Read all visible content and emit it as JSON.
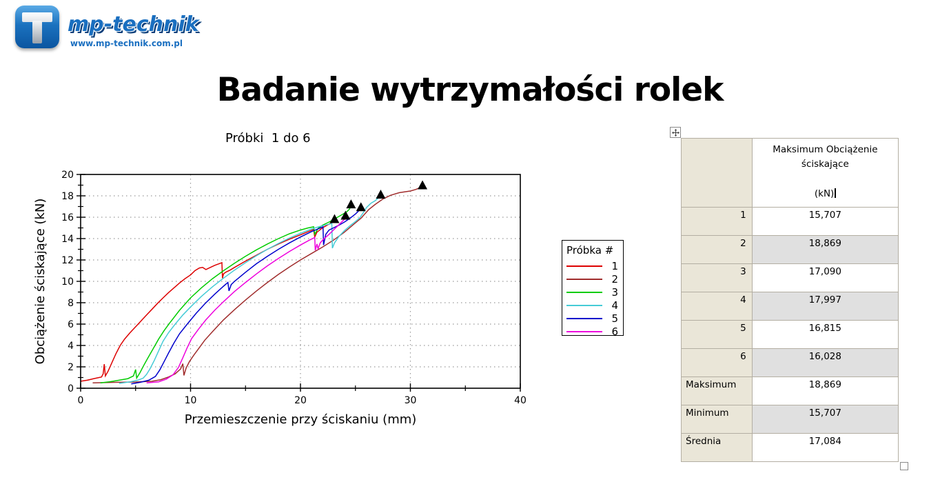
{
  "brand": {
    "logo_letter": "T",
    "name": "mp-technik",
    "website": "www.mp-technik.com.pl",
    "color": "#1a6fc0"
  },
  "page_title": "Badanie wytrzymałości rolek",
  "chart_data": {
    "type": "line",
    "title": "Próbki  1 do 6",
    "xlabel": "Przemieszczenie przy ściskaniu (mm)",
    "ylabel": "Obciążenie ściskające (kN)",
    "xlim": [
      0,
      40
    ],
    "ylim": [
      0,
      20
    ],
    "x_ticks": [
      0,
      10,
      20,
      30,
      40
    ],
    "x_minor_ticks": [
      5,
      15,
      25,
      35
    ],
    "y_ticks": [
      0,
      2,
      4,
      6,
      8,
      10,
      12,
      14,
      16,
      18,
      20
    ],
    "y_minor_ticks": [
      1,
      3,
      5,
      7,
      9,
      11,
      13,
      15,
      17,
      19
    ],
    "grid": true,
    "grid_color": "#999999",
    "legend_title": "Próbka #",
    "legend_position": "right",
    "marker_note": "black triangle marks maximum load of each sample",
    "series": [
      {
        "name": "1",
        "color": "#dd0000",
        "max_point": [
          23.1,
          15.71
        ],
        "points": [
          [
            0,
            0.65
          ],
          [
            0.6,
            0.75
          ],
          [
            1.2,
            0.9
          ],
          [
            1.9,
            1.05
          ],
          [
            2.05,
            1.35
          ],
          [
            2.15,
            2.25
          ],
          [
            2.25,
            1.15
          ],
          [
            2.5,
            1.6
          ],
          [
            2.8,
            2.3
          ],
          [
            3.2,
            3.2
          ],
          [
            3.6,
            4.0
          ],
          [
            4,
            4.6
          ],
          [
            4.5,
            5.2
          ],
          [
            5,
            5.75
          ],
          [
            5.5,
            6.3
          ],
          [
            6,
            6.85
          ],
          [
            6.5,
            7.4
          ],
          [
            7,
            7.95
          ],
          [
            7.5,
            8.45
          ],
          [
            8,
            8.95
          ],
          [
            8.5,
            9.4
          ],
          [
            9,
            9.85
          ],
          [
            9.5,
            10.25
          ],
          [
            10,
            10.6
          ],
          [
            10.4,
            11.0
          ],
          [
            10.8,
            11.25
          ],
          [
            11.1,
            11.3
          ],
          [
            11.4,
            11.1
          ],
          [
            11.7,
            11.25
          ],
          [
            12.2,
            11.5
          ],
          [
            12.6,
            11.65
          ],
          [
            12.85,
            11.75
          ],
          [
            12.9,
            10.3
          ],
          [
            13,
            10.7
          ],
          [
            13.2,
            10.85
          ],
          [
            13.6,
            11.05
          ],
          [
            14,
            11.3
          ],
          [
            15,
            11.9
          ],
          [
            16,
            12.45
          ],
          [
            17,
            13.0
          ],
          [
            18,
            13.5
          ],
          [
            19,
            13.95
          ],
          [
            20,
            14.35
          ],
          [
            20.7,
            14.65
          ],
          [
            21.2,
            14.85
          ],
          [
            21.3,
            14.15
          ],
          [
            21.5,
            14.6
          ],
          [
            22,
            15.0
          ],
          [
            22.5,
            15.3
          ],
          [
            22.8,
            15.45
          ],
          [
            23.1,
            15.71
          ]
        ]
      },
      {
        "name": "2",
        "color": "#a02c2c",
        "max_point": [
          31.1,
          18.87
        ],
        "points": [
          [
            1.1,
            0.5
          ],
          [
            3,
            0.55
          ],
          [
            5,
            0.58
          ],
          [
            6.5,
            0.65
          ],
          [
            7.3,
            0.8
          ],
          [
            8,
            1.05
          ],
          [
            8.6,
            1.35
          ],
          [
            9.1,
            1.8
          ],
          [
            9.3,
            2.3
          ],
          [
            9.4,
            1.2
          ],
          [
            9.6,
            1.9
          ],
          [
            9.9,
            2.5
          ],
          [
            10.3,
            3.1
          ],
          [
            10.8,
            3.8
          ],
          [
            11.3,
            4.5
          ],
          [
            12,
            5.3
          ],
          [
            13,
            6.4
          ],
          [
            14,
            7.35
          ],
          [
            15,
            8.25
          ],
          [
            16,
            9.1
          ],
          [
            17,
            9.9
          ],
          [
            18,
            10.65
          ],
          [
            19,
            11.35
          ],
          [
            20,
            12.0
          ],
          [
            21,
            12.6
          ],
          [
            22,
            13.2
          ],
          [
            23,
            13.85
          ],
          [
            24,
            14.6
          ],
          [
            24.8,
            15.3
          ],
          [
            25.5,
            15.9
          ],
          [
            26.2,
            16.7
          ],
          [
            26.8,
            17.2
          ],
          [
            27.5,
            17.7
          ],
          [
            28.2,
            18.05
          ],
          [
            29,
            18.3
          ],
          [
            30,
            18.45
          ],
          [
            30.5,
            18.6
          ],
          [
            31.1,
            18.87
          ]
        ]
      },
      {
        "name": "3",
        "color": "#00cc00",
        "max_point": [
          24.6,
          17.09
        ],
        "points": [
          [
            1.8,
            0.5
          ],
          [
            2.6,
            0.6
          ],
          [
            3.5,
            0.75
          ],
          [
            4.3,
            0.9
          ],
          [
            4.8,
            1.15
          ],
          [
            5,
            1.75
          ],
          [
            5.1,
            0.95
          ],
          [
            5.4,
            1.45
          ],
          [
            5.7,
            2.05
          ],
          [
            6.1,
            2.8
          ],
          [
            6.6,
            3.7
          ],
          [
            7.1,
            4.6
          ],
          [
            7.6,
            5.4
          ],
          [
            8.1,
            6.1
          ],
          [
            9,
            7.3
          ],
          [
            10,
            8.45
          ],
          [
            11,
            9.4
          ],
          [
            12,
            10.25
          ],
          [
            13,
            11.0
          ],
          [
            14,
            11.7
          ],
          [
            15,
            12.35
          ],
          [
            16,
            12.95
          ],
          [
            17,
            13.5
          ],
          [
            18,
            14.0
          ],
          [
            19,
            14.45
          ],
          [
            20,
            14.8
          ],
          [
            20.7,
            15.0
          ],
          [
            21.2,
            15.1
          ],
          [
            21.3,
            14.4
          ],
          [
            21.6,
            14.95
          ],
          [
            22,
            15.25
          ],
          [
            22.6,
            15.55
          ],
          [
            23.2,
            15.9
          ],
          [
            23.8,
            16.25
          ],
          [
            24.2,
            16.5
          ],
          [
            24.45,
            16.75
          ],
          [
            24.6,
            17.09
          ]
        ]
      },
      {
        "name": "4",
        "color": "#45cbd6",
        "max_point": [
          27.3,
          18.0
        ],
        "points": [
          [
            3.5,
            0.45
          ],
          [
            4.5,
            0.6
          ],
          [
            5.2,
            0.75
          ],
          [
            5.7,
            0.95
          ],
          [
            6,
            1.3
          ],
          [
            6.3,
            1.8
          ],
          [
            6.7,
            2.6
          ],
          [
            7.1,
            3.5
          ],
          [
            7.5,
            4.4
          ],
          [
            8,
            5.2
          ],
          [
            8.6,
            6.0
          ],
          [
            9.3,
            6.85
          ],
          [
            10,
            7.6
          ],
          [
            11,
            8.6
          ],
          [
            12,
            9.5
          ],
          [
            13,
            10.3
          ],
          [
            14,
            11.05
          ],
          [
            15,
            11.75
          ],
          [
            16,
            12.4
          ],
          [
            17,
            13.0
          ],
          [
            18,
            13.55
          ],
          [
            19,
            14.05
          ],
          [
            20,
            14.5
          ],
          [
            21,
            14.9
          ],
          [
            21.8,
            15.15
          ],
          [
            22.4,
            15.3
          ],
          [
            22.85,
            15.4
          ],
          [
            22.9,
            13.1
          ],
          [
            23.1,
            13.6
          ],
          [
            23.5,
            14.2
          ],
          [
            24,
            14.75
          ],
          [
            24.5,
            15.2
          ],
          [
            25,
            15.6
          ],
          [
            25.4,
            15.95
          ],
          [
            25.7,
            16.4
          ],
          [
            26,
            16.9
          ],
          [
            26.4,
            17.3
          ],
          [
            26.8,
            17.55
          ],
          [
            27.3,
            18.0
          ]
        ]
      },
      {
        "name": "5",
        "color": "#0000cc",
        "max_point": [
          25.5,
          16.82
        ],
        "points": [
          [
            4.6,
            0.4
          ],
          [
            5.4,
            0.55
          ],
          [
            6.2,
            0.75
          ],
          [
            6.8,
            1.1
          ],
          [
            7.2,
            1.7
          ],
          [
            7.6,
            2.5
          ],
          [
            8,
            3.3
          ],
          [
            8.5,
            4.25
          ],
          [
            9,
            5.1
          ],
          [
            9.7,
            6.0
          ],
          [
            10.5,
            7.0
          ],
          [
            11.3,
            7.9
          ],
          [
            12.2,
            8.8
          ],
          [
            13,
            9.55
          ],
          [
            13.4,
            9.9
          ],
          [
            13.5,
            9.1
          ],
          [
            13.7,
            9.7
          ],
          [
            14,
            10.0
          ],
          [
            15,
            10.85
          ],
          [
            16,
            11.65
          ],
          [
            17,
            12.35
          ],
          [
            18,
            13.0
          ],
          [
            19,
            13.6
          ],
          [
            20,
            14.15
          ],
          [
            21,
            14.65
          ],
          [
            21.7,
            14.95
          ],
          [
            22.05,
            15.1
          ],
          [
            22.1,
            13.4
          ],
          [
            22.3,
            14.4
          ],
          [
            22.6,
            14.8
          ],
          [
            23,
            15.0
          ],
          [
            23.5,
            15.25
          ],
          [
            24,
            15.55
          ],
          [
            24.5,
            15.9
          ],
          [
            25,
            16.3
          ],
          [
            25.2,
            16.5
          ],
          [
            25.5,
            16.82
          ]
        ]
      },
      {
        "name": "6",
        "color": "#ee00dd",
        "max_point": [
          24.1,
          16.03
        ],
        "points": [
          [
            6,
            0.5
          ],
          [
            7.1,
            0.6
          ],
          [
            7.8,
            0.85
          ],
          [
            8.4,
            1.25
          ],
          [
            8.9,
            1.95
          ],
          [
            9.3,
            2.85
          ],
          [
            9.7,
            3.8
          ],
          [
            10.1,
            4.65
          ],
          [
            10.7,
            5.5
          ],
          [
            11.4,
            6.4
          ],
          [
            12.2,
            7.3
          ],
          [
            13,
            8.1
          ],
          [
            14,
            9.05
          ],
          [
            15,
            9.9
          ],
          [
            16,
            10.7
          ],
          [
            17,
            11.45
          ],
          [
            18,
            12.15
          ],
          [
            19,
            12.8
          ],
          [
            20,
            13.4
          ],
          [
            20.8,
            13.85
          ],
          [
            21.3,
            14.1
          ],
          [
            21.35,
            12.9
          ],
          [
            21.5,
            13.5
          ],
          [
            21.6,
            13.05
          ],
          [
            21.8,
            13.6
          ],
          [
            22.1,
            13.95
          ],
          [
            22.6,
            14.4
          ],
          [
            23.1,
            14.9
          ],
          [
            23.6,
            15.4
          ],
          [
            24,
            15.8
          ],
          [
            24.1,
            16.03
          ]
        ]
      }
    ]
  },
  "table": {
    "header_title": "Maksimum Obciążenie ściskające",
    "header_unit": "(kN)",
    "colors": {
      "label_bg": "#eae6d8",
      "alt_row_bg": "#e0e0e0",
      "border": "#b3aea2"
    },
    "rows": [
      [
        "1",
        "15,707"
      ],
      [
        "2",
        "18,869"
      ],
      [
        "3",
        "17,090"
      ],
      [
        "4",
        "17,997"
      ],
      [
        "5",
        "16,815"
      ],
      [
        "6",
        "16,028"
      ],
      [
        "Maksimum",
        "18,869"
      ],
      [
        "Minimum",
        "15,707"
      ],
      [
        "Średnia",
        "17,084"
      ]
    ]
  }
}
